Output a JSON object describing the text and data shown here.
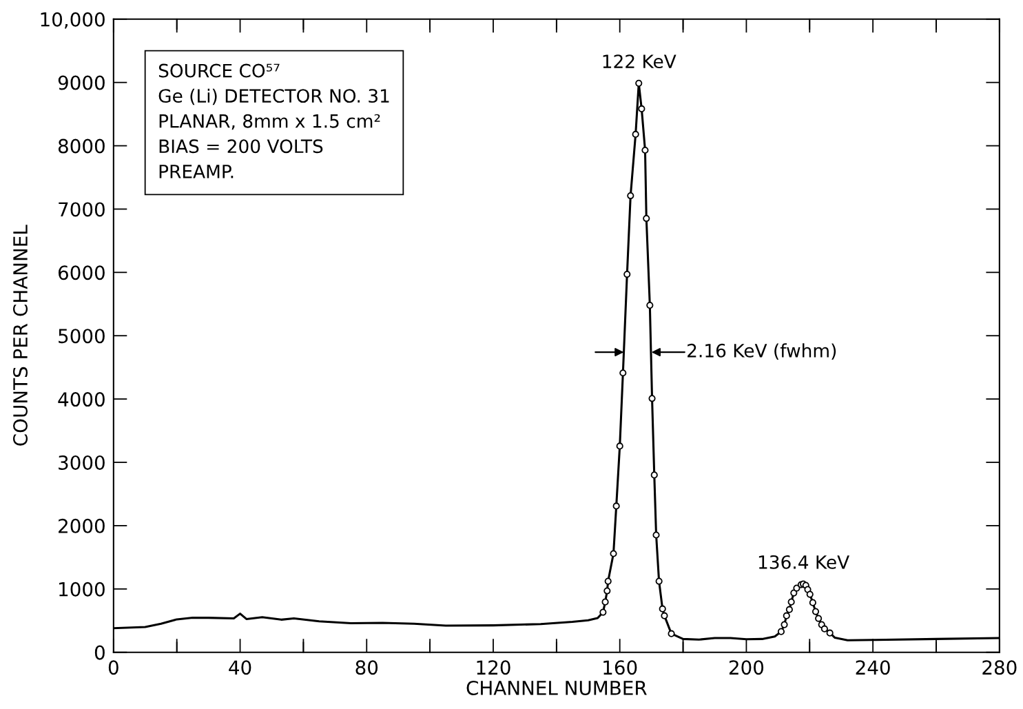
{
  "chart_data": {
    "type": "line",
    "xlabel": "CHANNEL NUMBER",
    "ylabel": "COUNTS PER CHANNEL",
    "xlim": [
      0,
      280
    ],
    "ylim": [
      0,
      10000
    ],
    "xticks": [
      0,
      {
        "value": 20,
        "label": null
      },
      40,
      {
        "value": 60,
        "label": null
      },
      80,
      {
        "value": 100,
        "label": null
      },
      120,
      {
        "value": 140,
        "label": null
      },
      160,
      {
        "value": 180,
        "label": null
      },
      200,
      {
        "value": 220,
        "label": null
      },
      240,
      {
        "value": 260,
        "label": null
      },
      280
    ],
    "yticks": [
      0,
      1000,
      2000,
      3000,
      4000,
      5000,
      6000,
      7000,
      8000,
      9000,
      {
        "value": 10000,
        "label": "10,000"
      }
    ],
    "grid": false,
    "series": [
      {
        "color": "#000000",
        "marker": "none",
        "line_style": "solid",
        "x": [
          0,
          10,
          15,
          20,
          25,
          30,
          38,
          40,
          42,
          47,
          53,
          57,
          65,
          75,
          85,
          95,
          105,
          120,
          135,
          145,
          150,
          153,
          154.7,
          155.4,
          156,
          156.3,
          158,
          158.9,
          160,
          161,
          162.3,
          163.4,
          165,
          166,
          166.9,
          168,
          168.4,
          169.5,
          170.2,
          170.9,
          171.5,
          172.4,
          173.5,
          174.1,
          176.3,
          180,
          185,
          190,
          195,
          200,
          205,
          209,
          211,
          212,
          212.7,
          213.6,
          214.2,
          215,
          215.9,
          217.3,
          218,
          218.8,
          219.4,
          220.1,
          221,
          221.9,
          222.8,
          223.8,
          224.7,
          226.4,
          228,
          232,
          240,
          260,
          280
        ],
        "values": [
          380,
          400,
          450,
          520,
          545,
          545,
          535,
          610,
          525,
          555,
          515,
          535,
          490,
          460,
          465,
          450,
          420,
          425,
          445,
          480,
          505,
          540,
          632,
          795,
          970,
          1122,
          1558,
          2310,
          3257,
          4412,
          5970,
          7211,
          8181,
          8987,
          8584,
          7930,
          6852,
          5480,
          4009,
          2800,
          1852,
          1122,
          686,
          577,
          294,
          210,
          200,
          225,
          225,
          205,
          210,
          250,
          327,
          436,
          577,
          675,
          795,
          937,
          1013,
          1068,
          1078,
          1057,
          991,
          915,
          784,
          643,
          534,
          436,
          370,
          305,
          230,
          190,
          195,
          210,
          225
        ]
      },
      {
        "type": "scatter",
        "color": "#000000",
        "marker": "circle",
        "x": [
          154.7,
          155.4,
          156,
          156.3,
          158,
          158.9,
          160,
          161,
          162.3,
          163.4,
          165,
          166,
          166.9,
          168,
          168.4,
          169.5,
          170.2,
          170.9,
          171.5,
          172.4,
          173.5,
          174.1,
          176.3,
          211,
          212,
          212.7,
          213.6,
          214.2,
          215,
          215.9,
          217.3,
          218,
          218.8,
          219.4,
          220.1,
          221,
          221.9,
          222.8,
          223.8,
          224.7,
          226.4
        ],
        "values": [
          632,
          795,
          970,
          1122,
          1558,
          2310,
          3257,
          4412,
          5970,
          7211,
          8181,
          8987,
          8584,
          7930,
          6852,
          5480,
          4009,
          2800,
          1852,
          1122,
          686,
          577,
          294,
          327,
          436,
          577,
          675,
          795,
          937,
          1013,
          1068,
          1078,
          1057,
          991,
          915,
          784,
          643,
          534,
          436,
          370,
          305
        ]
      }
    ],
    "annotations": [
      "SOURCE CO⁵⁷\nGe (Li) DETECTOR NO. 31\nPLANAR, 8mm x 1.5 cm²\nBIAS = 200 VOLTS\nPREAMP.",
      {
        "text": "122 KeV",
        "x": 166,
        "y": 8987
      },
      {
        "text": "136.4 KeV",
        "x": 218,
        "y": 1078
      },
      {
        "text": "2.16 KeV (fwhm)",
        "x": 170.0,
        "y": 4740
      }
    ]
  }
}
